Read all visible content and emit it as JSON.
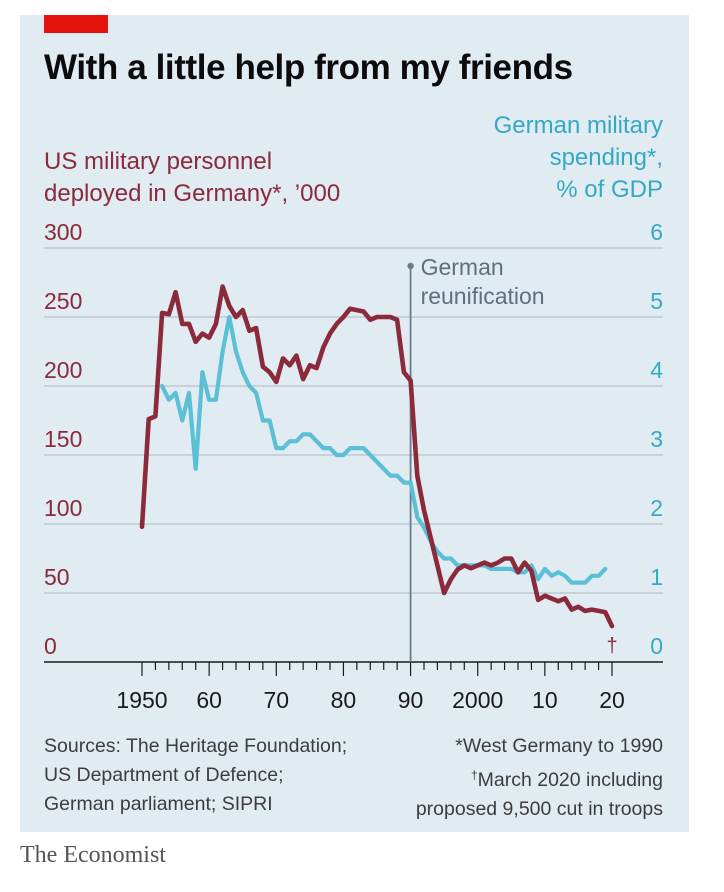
{
  "title": "With a little help from my friends",
  "colors": {
    "us_series": "#8a2a3a",
    "spending_series": "#5bc0d6",
    "right_axis": "#34a9c4",
    "panel": "#e1ebf2",
    "accent": "#e3120b"
  },
  "left_axis_title": [
    "US military personnel",
    "deployed in Germany*, ’000"
  ],
  "right_axis_title": [
    "German military",
    "spending*,",
    "% of GDP"
  ],
  "annotation": [
    "German",
    "reunification"
  ],
  "dagger_mark": "†",
  "sources": [
    "Sources: The Heritage Foundation;",
    "US Department of Defence;",
    "German parliament; SIPRI"
  ],
  "notes": [
    "*West Germany to 1990",
    "March 2020 including",
    "proposed 9,500 cut in troops"
  ],
  "notes_dagger": "†",
  "brand": "The Economist",
  "chart_data": {
    "type": "line",
    "y_left": {
      "range": [
        0,
        300
      ],
      "ticks": [
        0,
        50,
        100,
        150,
        200,
        250,
        300
      ],
      "tick_labels": [
        "0",
        "50",
        "100",
        "150",
        "200",
        "250",
        "300"
      ]
    },
    "y_right": {
      "range": [
        0,
        6
      ],
      "ticks": [
        0,
        1,
        2,
        3,
        4,
        5,
        6
      ],
      "tick_labels": [
        "0",
        "1",
        "2",
        "3",
        "4",
        "5",
        "6"
      ]
    },
    "x_axis": {
      "range": [
        1950,
        2020
      ],
      "ticks": [
        1950,
        1960,
        1970,
        1980,
        1990,
        2000,
        2010,
        2020
      ],
      "tick_labels": [
        "1950",
        "60",
        "70",
        "80",
        "90",
        "2000",
        "10",
        "20"
      ]
    },
    "grid": "horizontal",
    "annotation_x": 1990,
    "series": [
      {
        "axis": "left",
        "x": [
          1950,
          1951,
          1952,
          1953,
          1954,
          1955,
          1956,
          1957,
          1958,
          1959,
          1960,
          1961,
          1962,
          1963,
          1964,
          1965,
          1966,
          1967,
          1968,
          1969,
          1970,
          1971,
          1972,
          1973,
          1974,
          1975,
          1976,
          1977,
          1978,
          1979,
          1980,
          1981,
          1982,
          1983,
          1984,
          1985,
          1986,
          1987,
          1988,
          1989,
          1990,
          1991,
          1992,
          1993,
          1994,
          1995,
          1996,
          1997,
          1998,
          1999,
          2000,
          2001,
          2002,
          2003,
          2004,
          2005,
          2006,
          2007,
          2008,
          2009,
          2010,
          2011,
          2012,
          2013,
          2014,
          2015,
          2016,
          2017,
          2018,
          2019,
          2020
        ],
        "y": [
          98,
          176,
          178,
          253,
          252,
          268,
          245,
          245,
          232,
          238,
          235,
          245,
          272,
          258,
          250,
          255,
          240,
          242,
          214,
          210,
          203,
          220,
          215,
          222,
          205,
          215,
          213,
          228,
          238,
          245,
          250,
          256,
          255,
          254,
          248,
          250,
          250,
          250,
          248,
          210,
          204,
          135,
          110,
          90,
          70,
          50,
          60,
          67,
          70,
          68,
          70,
          72,
          70,
          72,
          75,
          75,
          65,
          72,
          66,
          45,
          48,
          46,
          44,
          46,
          38,
          40,
          37,
          38,
          37,
          36,
          26
        ]
      },
      {
        "axis": "right",
        "x": [
          1953,
          1954,
          1955,
          1956,
          1957,
          1958,
          1959,
          1960,
          1961,
          1962,
          1963,
          1964,
          1965,
          1966,
          1967,
          1968,
          1969,
          1970,
          1971,
          1972,
          1973,
          1974,
          1975,
          1976,
          1977,
          1978,
          1979,
          1980,
          1981,
          1982,
          1983,
          1984,
          1985,
          1986,
          1987,
          1988,
          1989,
          1990,
          1991,
          1992,
          1993,
          1994,
          1995,
          1996,
          1997,
          1998,
          1999,
          2000,
          2001,
          2002,
          2003,
          2004,
          2005,
          2006,
          2007,
          2008,
          2009,
          2010,
          2011,
          2012,
          2013,
          2014,
          2015,
          2016,
          2017,
          2018,
          2019
        ],
        "y": [
          4.0,
          3.8,
          3.9,
          3.5,
          3.9,
          2.8,
          4.2,
          3.8,
          3.8,
          4.5,
          5.0,
          4.5,
          4.2,
          4.0,
          3.9,
          3.5,
          3.5,
          3.1,
          3.1,
          3.2,
          3.2,
          3.3,
          3.3,
          3.2,
          3.1,
          3.1,
          3.0,
          3.0,
          3.1,
          3.1,
          3.1,
          3.0,
          2.9,
          2.8,
          2.7,
          2.7,
          2.6,
          2.6,
          2.1,
          1.95,
          1.75,
          1.6,
          1.5,
          1.5,
          1.4,
          1.4,
          1.4,
          1.4,
          1.4,
          1.35,
          1.35,
          1.35,
          1.35,
          1.3,
          1.3,
          1.4,
          1.2,
          1.35,
          1.25,
          1.3,
          1.25,
          1.15,
          1.15,
          1.15,
          1.25,
          1.25,
          1.35
        ]
      }
    ]
  }
}
